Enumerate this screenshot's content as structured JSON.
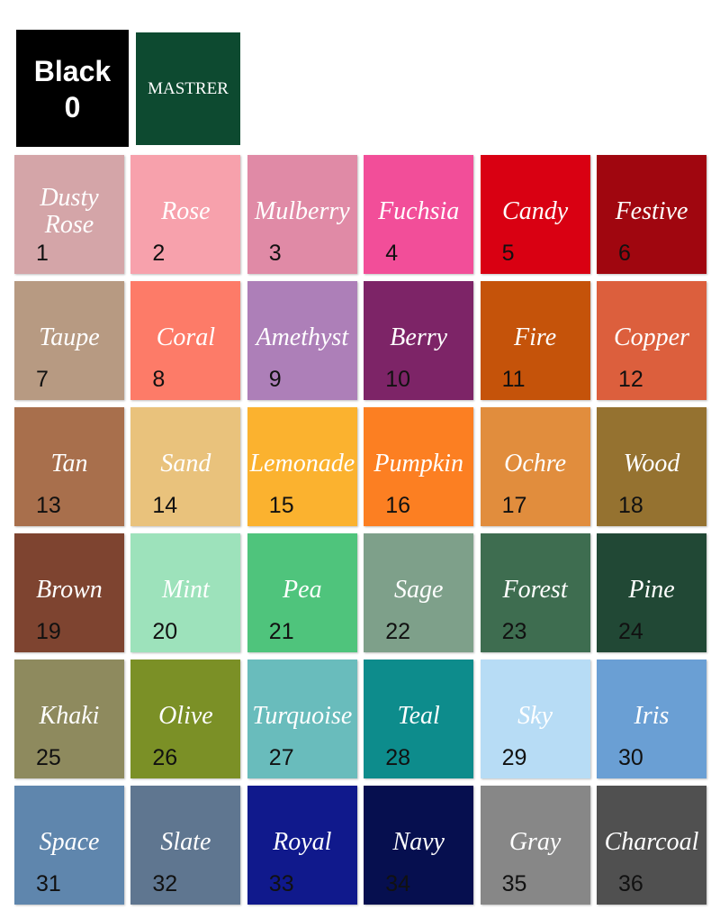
{
  "header": {
    "black": {
      "name": "Black",
      "number": 0
    },
    "master": "MASTRER"
  },
  "swatches": [
    {
      "name": "Dusty Rose",
      "number": 1,
      "color": "#d4a5a8"
    },
    {
      "name": "Rose",
      "number": 2,
      "color": "#f7a1ac"
    },
    {
      "name": "Mulberry",
      "number": 3,
      "color": "#e08aa6"
    },
    {
      "name": "Fuchsia",
      "number": 4,
      "color": "#f24e99"
    },
    {
      "name": "Candy",
      "number": 5,
      "color": "#d90012"
    },
    {
      "name": "Festive",
      "number": 6,
      "color": "#a0060f"
    },
    {
      "name": "Taupe",
      "number": 7,
      "color": "#b79a82"
    },
    {
      "name": "Coral",
      "number": 8,
      "color": "#fd7b68"
    },
    {
      "name": "Amethyst",
      "number": 9,
      "color": "#ad7fb8"
    },
    {
      "name": "Berry",
      "number": 10,
      "color": "#7d2467"
    },
    {
      "name": "Fire",
      "number": 11,
      "color": "#c5530a"
    },
    {
      "name": "Copper",
      "number": 12,
      "color": "#dc5f3d"
    },
    {
      "name": "Tan",
      "number": 13,
      "color": "#a86f4c"
    },
    {
      "name": "Sand",
      "number": 14,
      "color": "#e9c27c"
    },
    {
      "name": "Lemonade",
      "number": 15,
      "color": "#fbb22f"
    },
    {
      "name": "Pumpkin",
      "number": 16,
      "color": "#fc7f22"
    },
    {
      "name": "Ochre",
      "number": 17,
      "color": "#e18d3d"
    },
    {
      "name": "Wood",
      "number": 18,
      "color": "#957230"
    },
    {
      "name": "Brown",
      "number": 19,
      "color": "#7e4430"
    },
    {
      "name": "Mint",
      "number": 20,
      "color": "#9de2bb"
    },
    {
      "name": "Pea",
      "number": 21,
      "color": "#4fc47c"
    },
    {
      "name": "Sage",
      "number": 22,
      "color": "#7ea08a"
    },
    {
      "name": "Forest",
      "number": 23,
      "color": "#3e6d50"
    },
    {
      "name": "Pine",
      "number": 24,
      "color": "#214835"
    },
    {
      "name": "Khaki",
      "number": 25,
      "color": "#8e8a5e"
    },
    {
      "name": "Olive",
      "number": 26,
      "color": "#7b9026"
    },
    {
      "name": "Turquoise",
      "number": 27,
      "color": "#69bcbc"
    },
    {
      "name": "Teal",
      "number": 28,
      "color": "#0d8c8c"
    },
    {
      "name": "Sky",
      "number": 29,
      "color": "#b7dcf5"
    },
    {
      "name": "Iris",
      "number": 30,
      "color": "#6a9fd4"
    },
    {
      "name": "Space",
      "number": 31,
      "color": "#5f86ad"
    },
    {
      "name": "Slate",
      "number": 32,
      "color": "#5f7690"
    },
    {
      "name": "Royal",
      "number": 33,
      "color": "#10198c"
    },
    {
      "name": "Navy",
      "number": 34,
      "color": "#060f4f"
    },
    {
      "name": "Gray",
      "number": 35,
      "color": "#878787"
    },
    {
      "name": "Charcoal",
      "number": 36,
      "color": "#505050"
    }
  ]
}
